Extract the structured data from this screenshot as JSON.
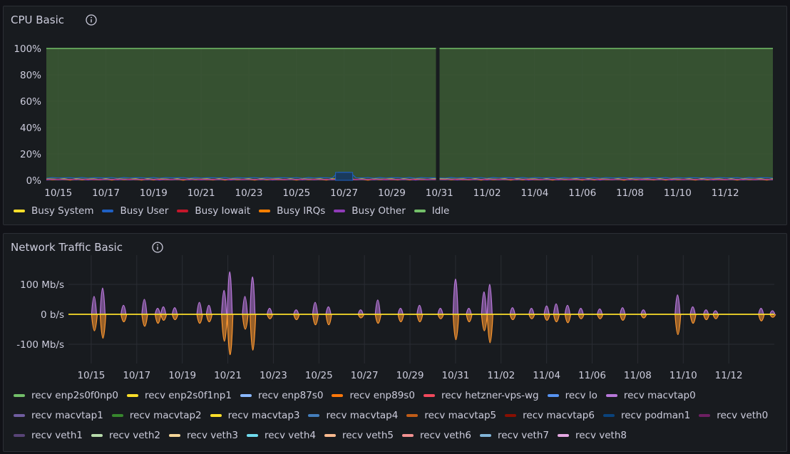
{
  "cpu_panel": {
    "title": "CPU Basic"
  },
  "net_panel": {
    "title": "Network Traffic Basic"
  },
  "colors": {
    "background": "#111217",
    "panel": "#181b1f",
    "grid": "#2a2d33",
    "tick_text": "#ccccdc",
    "idle_fill": "#3c5a35",
    "idle_line": "#73bf69",
    "net_up": "#b877d9",
    "net_down": "#ff9830",
    "net_zero": "#fade2a"
  },
  "chart_data": [
    {
      "type": "area",
      "title": "CPU Basic",
      "ylim": [
        0,
        100
      ],
      "yticks": [
        "0%",
        "20%",
        "40%",
        "60%",
        "80%",
        "100%"
      ],
      "xticks": [
        "10/15",
        "10/17",
        "10/19",
        "10/21",
        "10/23",
        "10/25",
        "10/27",
        "10/29",
        "10/31",
        "11/02",
        "11/04",
        "11/06",
        "11/08",
        "11/10",
        "11/12"
      ],
      "x_range": [
        "10/14 12:00",
        "11/14"
      ],
      "gap_at": "10/30 22:00",
      "legend_placement": "bottom",
      "series": [
        {
          "name": "Busy System",
          "color": "#fade2a",
          "typical_value": 0.5
        },
        {
          "name": "Busy User",
          "color": "#1f60c4",
          "typical_value": 1.5,
          "spike": {
            "at": "10/27",
            "value": 6
          }
        },
        {
          "name": "Busy Iowait",
          "color": "#c4162a",
          "typical_value": 0.3
        },
        {
          "name": "Busy IRQs",
          "color": "#ff7f00",
          "typical_value": 0.1
        },
        {
          "name": "Busy Other",
          "color": "#8f3bb8",
          "typical_value": 0.2
        },
        {
          "name": "Idle",
          "color": "#73bf69",
          "typical_value": 97.4
        }
      ]
    },
    {
      "type": "line",
      "title": "Network Traffic Basic",
      "ylim": [
        -150,
        150
      ],
      "yunit": "Mb/s",
      "yticks": [
        {
          "label": "100 Mb/s",
          "value": 100
        },
        {
          "label": "0 b/s",
          "value": 0
        },
        {
          "label": "-100 Mb/s",
          "value": -100
        }
      ],
      "xticks": [
        "10/15",
        "10/17",
        "10/19",
        "10/21",
        "10/23",
        "10/25",
        "10/27",
        "10/29",
        "10/31",
        "11/02",
        "11/04",
        "11/06",
        "11/08",
        "11/10",
        "11/12"
      ],
      "legend_placement": "bottom",
      "spikes": [
        {
          "at": "10/15 03:00",
          "up": 60,
          "down": -55
        },
        {
          "at": "10/15 12:00",
          "up": 88,
          "down": -80
        },
        {
          "at": "10/16 10:00",
          "up": 30,
          "down": -25
        },
        {
          "at": "10/17 08:00",
          "up": 50,
          "down": -40
        },
        {
          "at": "10/17 22:00",
          "up": 20,
          "down": -30
        },
        {
          "at": "10/18 04:00",
          "up": 25,
          "down": -20
        },
        {
          "at": "10/18 16:00",
          "up": 22,
          "down": -18
        },
        {
          "at": "10/19 18:00",
          "up": 40,
          "down": -30
        },
        {
          "at": "10/20 04:00",
          "up": 30,
          "down": -25
        },
        {
          "at": "10/20 20:00",
          "up": 80,
          "down": -90
        },
        {
          "at": "10/21 02:00",
          "up": 142,
          "down": -135
        },
        {
          "at": "10/21 18:00",
          "up": 60,
          "down": -50
        },
        {
          "at": "10/22 02:00",
          "up": 125,
          "down": -120
        },
        {
          "at": "10/22 20:00",
          "up": 20,
          "down": -15
        },
        {
          "at": "10/24 00:00",
          "up": 15,
          "down": -18
        },
        {
          "at": "10/24 20:00",
          "up": 40,
          "down": -35
        },
        {
          "at": "10/25 10:00",
          "up": 25,
          "down": -35
        },
        {
          "at": "10/26 20:00",
          "up": 15,
          "down": -12
        },
        {
          "at": "10/27 14:00",
          "up": 48,
          "down": -30
        },
        {
          "at": "10/28 14:00",
          "up": 20,
          "down": -25
        },
        {
          "at": "10/29 10:00",
          "up": 30,
          "down": -25
        },
        {
          "at": "10/30 08:00",
          "up": 20,
          "down": -15
        },
        {
          "at": "10/31 00:00",
          "up": 118,
          "down": -85
        },
        {
          "at": "10/31 14:00",
          "up": 20,
          "down": -25
        },
        {
          "at": "11/01 06:00",
          "up": 75,
          "down": -55
        },
        {
          "at": "11/01 12:00",
          "up": 100,
          "down": -95
        },
        {
          "at": "11/02 12:00",
          "up": 22,
          "down": -18
        },
        {
          "at": "11/03 08:00",
          "up": 20,
          "down": -15
        },
        {
          "at": "11/04 00:00",
          "up": 28,
          "down": -20
        },
        {
          "at": "11/04 10:00",
          "up": 35,
          "down": -25
        },
        {
          "at": "11/04 22:00",
          "up": 30,
          "down": -28
        },
        {
          "at": "11/05 12:00",
          "up": 20,
          "down": -15
        },
        {
          "at": "11/06 08:00",
          "up": 18,
          "down": -15
        },
        {
          "at": "11/07 08:00",
          "up": 22,
          "down": -20
        },
        {
          "at": "11/08 06:00",
          "up": 15,
          "down": -12
        },
        {
          "at": "11/09 18:00",
          "up": 65,
          "down": -68
        },
        {
          "at": "11/10 10:00",
          "up": 25,
          "down": -30
        },
        {
          "at": "11/11 00:00",
          "up": 15,
          "down": -18
        },
        {
          "at": "11/11 10:00",
          "up": 12,
          "down": -15
        },
        {
          "at": "11/13 10:00",
          "up": 20,
          "down": -22
        },
        {
          "at": "11/13 22:00",
          "up": 12,
          "down": -10
        }
      ],
      "series": [
        {
          "name": "recv enp2s0f0np0",
          "color": "#73bf69"
        },
        {
          "name": "recv enp2s0f1np1",
          "color": "#fade2a"
        },
        {
          "name": "recv enp87s0",
          "color": "#8ab8ff"
        },
        {
          "name": "recv enp89s0",
          "color": "#ff780a"
        },
        {
          "name": "recv hetzner-vps-wg",
          "color": "#f2495c"
        },
        {
          "name": "recv lo",
          "color": "#5794f2"
        },
        {
          "name": "recv macvtap0",
          "color": "#b877d9"
        },
        {
          "name": "recv macvtap1",
          "color": "#705da0"
        },
        {
          "name": "recv macvtap2",
          "color": "#37872d"
        },
        {
          "name": "recv macvtap3",
          "color": "#fade2a"
        },
        {
          "name": "recv macvtap4",
          "color": "#447ebc"
        },
        {
          "name": "recv macvtap5",
          "color": "#c15c17"
        },
        {
          "name": "recv macvtap6",
          "color": "#890f02"
        },
        {
          "name": "recv podman1",
          "color": "#0a437c"
        },
        {
          "name": "recv veth0",
          "color": "#6d1f62"
        },
        {
          "name": "recv veth1",
          "color": "#584477"
        },
        {
          "name": "recv veth2",
          "color": "#b7dbab"
        },
        {
          "name": "recv veth3",
          "color": "#f4d598"
        },
        {
          "name": "recv veth4",
          "color": "#70dbed"
        },
        {
          "name": "recv veth5",
          "color": "#f9ba8f"
        },
        {
          "name": "recv veth6",
          "color": "#f29191"
        },
        {
          "name": "recv veth7",
          "color": "#82b5d8"
        },
        {
          "name": "recv veth8",
          "color": "#e5a8e2"
        }
      ]
    }
  ]
}
